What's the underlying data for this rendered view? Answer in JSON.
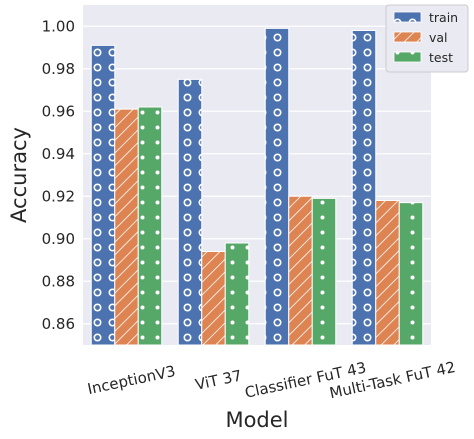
{
  "chart_data": {
    "type": "bar",
    "title": "",
    "xlabel": "Model",
    "ylabel": "Accuracy",
    "categories": [
      "InceptionV3",
      "ViT 37",
      "Classifier FuT 43",
      "Multi-Task FuT 42"
    ],
    "series": [
      {
        "name": "train",
        "values": [
          0.991,
          0.975,
          0.999,
          0.998
        ],
        "color": "#4c72b0",
        "hatch": "circles"
      },
      {
        "name": "val",
        "values": [
          0.961,
          0.894,
          0.92,
          0.918
        ],
        "color": "#dd8452",
        "hatch": "diagonal"
      },
      {
        "name": "test",
        "values": [
          0.962,
          0.898,
          0.919,
          0.917
        ],
        "color": "#55a868",
        "hatch": "dots"
      }
    ],
    "ylim": [
      0.85,
      1.01
    ],
    "yticks": [
      "0.86",
      "0.88",
      "0.90",
      "0.92",
      "0.94",
      "0.96",
      "0.98",
      "1.00"
    ],
    "grid": true,
    "legend": "top-right",
    "background": "#eaeaf2"
  }
}
